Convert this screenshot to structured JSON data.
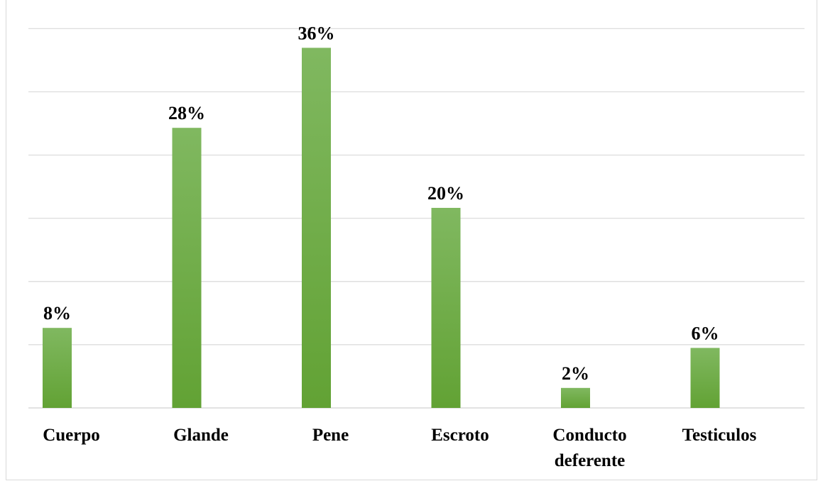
{
  "chart_data": {
    "type": "bar",
    "categories": [
      [
        "Cuerpo"
      ],
      [
        "Glande"
      ],
      [
        "Pene"
      ],
      [
        "Escroto"
      ],
      [
        "Conducto",
        "deferente"
      ],
      [
        "Testiculos"
      ]
    ],
    "values": [
      8,
      28,
      36,
      20,
      2,
      6
    ],
    "data_labels": [
      "8%",
      "28%",
      "36%",
      "20%",
      "2%",
      "6%"
    ],
    "unit": "%",
    "ylim": [
      0,
      36
    ],
    "gridlines": true,
    "legend": "none",
    "colors": {
      "bar_top": "#80b860",
      "bar_bottom": "#62a234",
      "grid": "#d9d9d9"
    }
  }
}
